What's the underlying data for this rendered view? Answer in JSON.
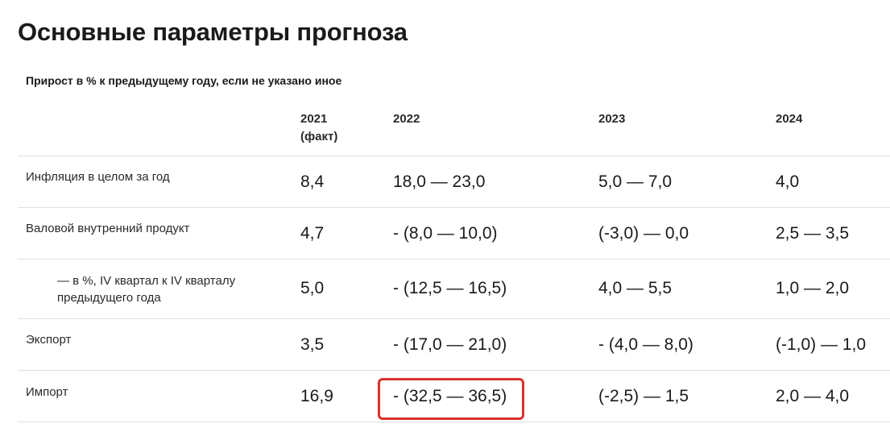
{
  "title": "Основные параметры прогноза",
  "subtitle": "Прирост в % к предыдущему году, если не указано иное",
  "columns": [
    "2021",
    "(факт)",
    "2022",
    "2023",
    "2024"
  ],
  "rows": [
    {
      "label": "Инфляция в целом за год",
      "values": [
        "8,4",
        "18,0 — 23,0",
        "5,0 — 7,0",
        "4,0"
      ]
    },
    {
      "label": "Валовой внутренний продукт",
      "values": [
        "4,7",
        "- (8,0 — 10,0)",
        "(-3,0) — 0,0",
        "2,5 — 3,5"
      ]
    },
    {
      "label_line1": "— в %, IV квартал к IV кварталу",
      "label_line2": "предыдущего года",
      "values": [
        "5,0",
        "- (12,5 — 16,5)",
        "4,0 — 5,5",
        "1,0 — 2,0"
      ]
    },
    {
      "label": "Экспорт",
      "values": [
        "3,5",
        "- (17,0 — 21,0)",
        "- (4,0 — 8,0)",
        "(-1,0) — 1,0"
      ]
    },
    {
      "label": "Импорт",
      "values": [
        "16,9",
        "- (32,5 — 36,5)",
        "(-2,5) — 1,5",
        "2,0 — 4,0"
      ]
    }
  ],
  "highlight_color": "#d9322f"
}
